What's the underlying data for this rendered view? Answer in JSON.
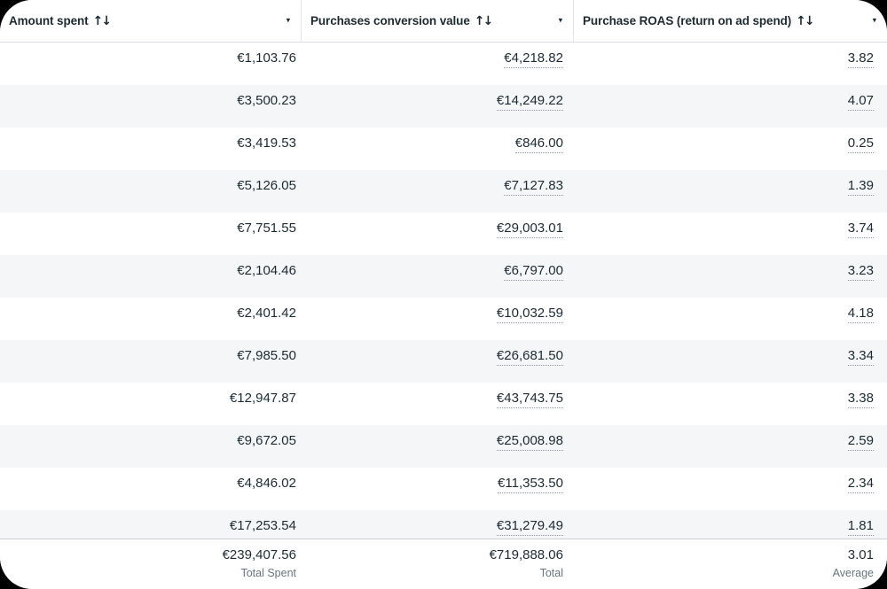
{
  "table": {
    "columns": [
      {
        "label": "Amount spent",
        "sort_icon": "↑↓",
        "caret_icon": "▾"
      },
      {
        "label": "Purchases conversion value",
        "sort_icon": "↑↓",
        "caret_icon": "▾"
      },
      {
        "label": "Purchase ROAS (return on ad spend)",
        "sort_icon": "↑↓",
        "caret_icon": "▾"
      }
    ],
    "rows": [
      {
        "amount_spent": "€1,103.76",
        "conversion_value": "€4,218.82",
        "roas": "3.82"
      },
      {
        "amount_spent": "€3,500.23",
        "conversion_value": "€14,249.22",
        "roas": "4.07"
      },
      {
        "amount_spent": "€3,419.53",
        "conversion_value": "€846.00",
        "roas": "0.25"
      },
      {
        "amount_spent": "€5,126.05",
        "conversion_value": "€7,127.83",
        "roas": "1.39"
      },
      {
        "amount_spent": "€7,751.55",
        "conversion_value": "€29,003.01",
        "roas": "3.74"
      },
      {
        "amount_spent": "€2,104.46",
        "conversion_value": "€6,797.00",
        "roas": "3.23"
      },
      {
        "amount_spent": "€2,401.42",
        "conversion_value": "€10,032.59",
        "roas": "4.18"
      },
      {
        "amount_spent": "€7,985.50",
        "conversion_value": "€26,681.50",
        "roas": "3.34"
      },
      {
        "amount_spent": "€12,947.87",
        "conversion_value": "€43,743.75",
        "roas": "3.38"
      },
      {
        "amount_spent": "€9,672.05",
        "conversion_value": "€25,008.98",
        "roas": "2.59"
      },
      {
        "amount_spent": "€4,846.02",
        "conversion_value": "€11,353.50",
        "roas": "2.34"
      },
      {
        "amount_spent": "€17,253.54",
        "conversion_value": "€31,279.49",
        "roas": "1.81"
      }
    ],
    "footer": {
      "amount_spent": {
        "value": "€239,407.56",
        "label": "Total Spent"
      },
      "conversion_value": {
        "value": "€719,888.06",
        "label": "Total"
      },
      "roas": {
        "value": "3.01",
        "label": "Average"
      }
    },
    "colors": {
      "text": "#1c2b33",
      "row_alt_background": "#f5f6f7",
      "header_border": "#dadde1",
      "footer_border": "#ccd0d5",
      "footer_label": "#66767f",
      "dotted_underline": "#8d99a5",
      "background": "#ffffff"
    }
  }
}
